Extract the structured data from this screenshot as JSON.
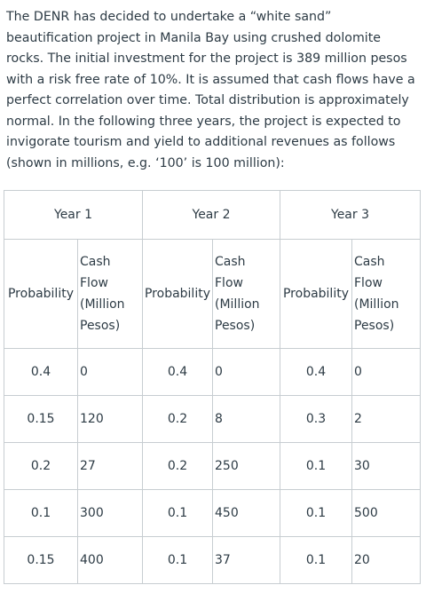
{
  "intro_text": "The DENR has decided to undertake a “white sand” beautification project in Manila Bay using crushed dolomite rocks. The initial investment for the project is 389 million pesos with a risk free rate of 10%. It is assumed that cash flows have a perfect correlation over time. Total distribution is approximately normal. In the following three years, the project is expected to invigorate tourism and yield to additional revenues as follows (shown in millions, e.g. ‘100’ is 100 million):",
  "table": {
    "years": [
      "Year 1",
      "Year 2",
      "Year 3"
    ],
    "probability_header": "Probability",
    "cashflow_header": [
      "Cash",
      "Flow",
      "(Million",
      "Pesos)"
    ],
    "rows": [
      [
        [
          "0.4",
          "0"
        ],
        [
          "0.4",
          "0"
        ],
        [
          "0.4",
          "0"
        ]
      ],
      [
        [
          "0.15",
          "120"
        ],
        [
          "0.2",
          "8"
        ],
        [
          "0.3",
          "2"
        ]
      ],
      [
        [
          "0.2",
          "27"
        ],
        [
          "0.2",
          "250"
        ],
        [
          "0.1",
          "30"
        ]
      ],
      [
        [
          "0.1",
          "300"
        ],
        [
          "0.1",
          "450"
        ],
        [
          "0.1",
          "500"
        ]
      ],
      [
        [
          "0.15",
          "400"
        ],
        [
          "0.1",
          "37"
        ],
        [
          "0.1",
          "20"
        ]
      ]
    ]
  }
}
